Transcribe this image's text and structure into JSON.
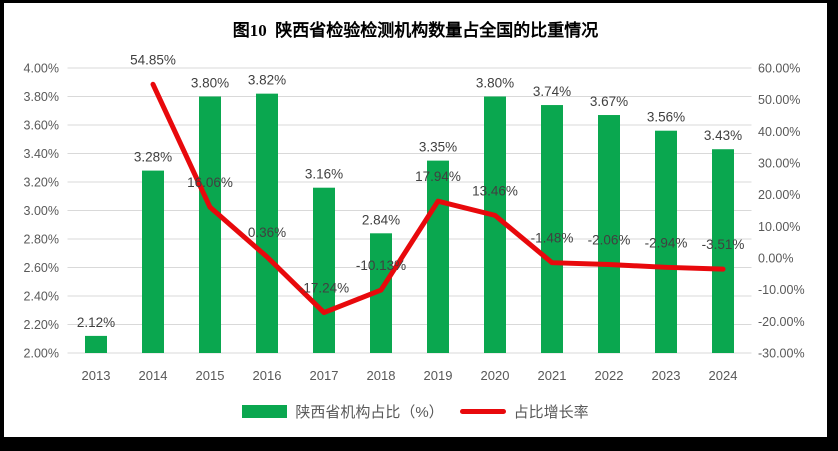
{
  "title": "图10  陕西省检验检测机构数量占全国的比重情况",
  "chart_data": {
    "type": "bar+line combo",
    "title": "图10  陕西省检验检测机构数量占全国的比重情况",
    "categories": [
      "2013",
      "2014",
      "2015",
      "2016",
      "2017",
      "2018",
      "2019",
      "2020",
      "2021",
      "2022",
      "2023",
      "2024"
    ],
    "series": [
      {
        "name": "陕西省机构占比（%）",
        "type": "bar",
        "axis": "left",
        "color": "#0AA74F",
        "values": [
          2.12,
          3.28,
          3.8,
          3.82,
          3.16,
          2.84,
          3.35,
          3.8,
          3.74,
          3.67,
          3.56,
          3.43
        ],
        "labels": [
          "2.12%",
          "3.28%",
          "3.80%",
          "3.82%",
          "3.16%",
          "2.84%",
          "3.35%",
          "3.80%",
          "3.74%",
          "3.67%",
          "3.56%",
          "3.43%"
        ]
      },
      {
        "name": "占比增长率",
        "type": "line",
        "axis": "right",
        "color": "#E8090C",
        "values": [
          null,
          54.85,
          16.06,
          0.36,
          -17.24,
          -10.13,
          17.94,
          13.46,
          -1.48,
          -2.06,
          -2.94,
          -3.51
        ],
        "labels": [
          null,
          "54.85%",
          "16.06%",
          "0.36%",
          "-17.24%",
          "-10.13%",
          "17.94%",
          "13.46%",
          "-1.48%",
          "-2.06%",
          "-2.94%",
          "-3.51%"
        ]
      }
    ],
    "left_axis": {
      "min": 2.0,
      "max": 4.0,
      "step": 0.2,
      "tick_labels": [
        "4.00%",
        "3.80%",
        "3.60%",
        "3.40%",
        "3.20%",
        "3.00%",
        "2.80%",
        "2.60%",
        "2.40%",
        "2.20%",
        "2.00%"
      ]
    },
    "right_axis": {
      "min": -30,
      "max": 60,
      "step": 10,
      "tick_labels": [
        "60.00%",
        "50.00%",
        "40.00%",
        "30.00%",
        "20.00%",
        "10.00%",
        "0.00%",
        "-10.00%",
        "-20.00%",
        "-30.00%"
      ]
    },
    "grid": true,
    "legend_position": "bottom"
  },
  "legend": {
    "items": [
      {
        "label": "陕西省机构占比（%）",
        "color": "#0AA74F",
        "marker": "bar"
      },
      {
        "label": "占比增长率",
        "color": "#E8090C",
        "marker": "line"
      }
    ]
  },
  "colors": {
    "bar_green": "#0AA74F",
    "line_red": "#E8090C",
    "gridline": "#D9D9D9",
    "axis_text": "#595959",
    "data_label_text": "#404040",
    "title_text": "#000000",
    "frame_border": "#000000",
    "background": "#FFFFFF"
  }
}
